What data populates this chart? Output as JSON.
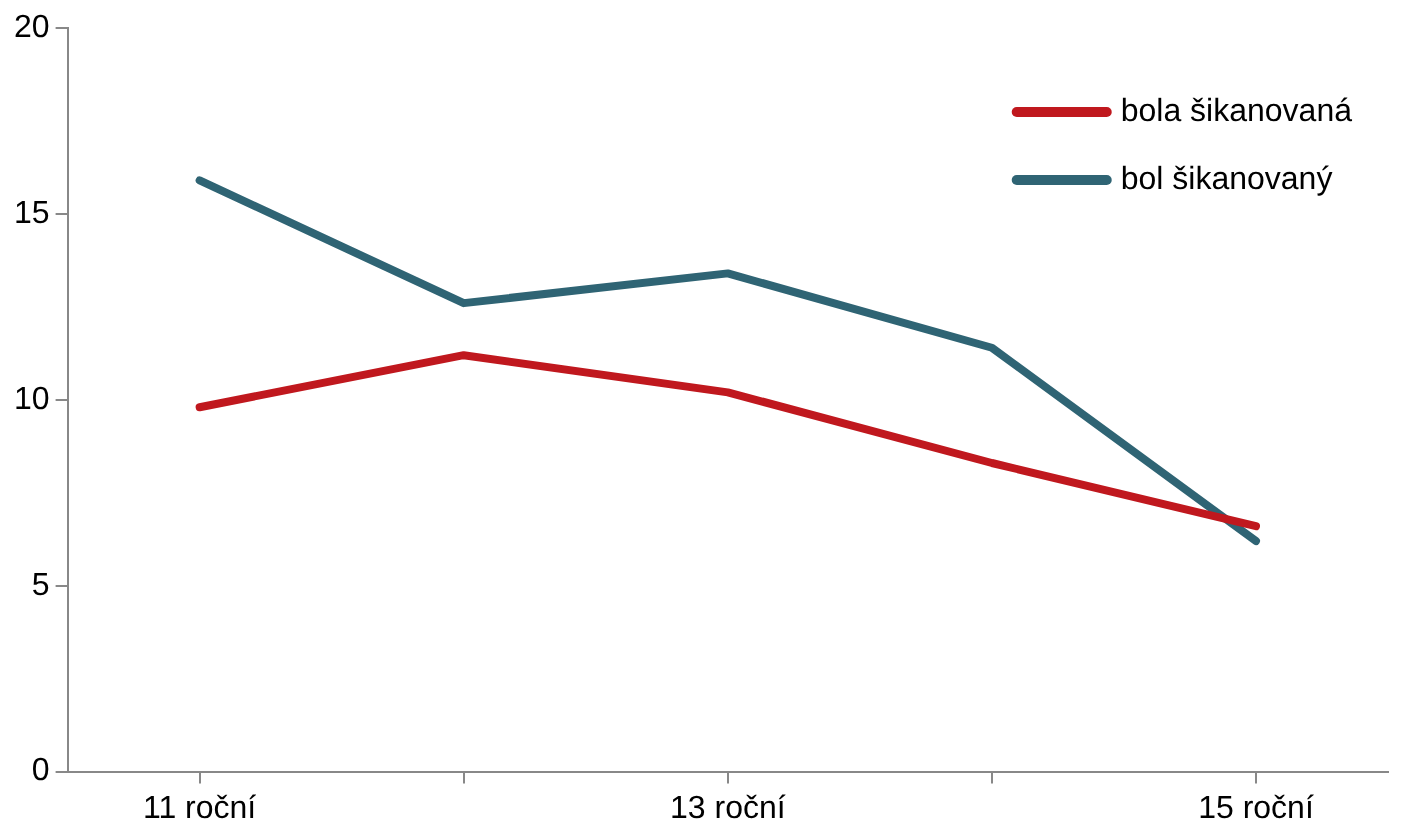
{
  "chart_data": {
    "type": "line",
    "categories": [
      "11 roční",
      null,
      "13 roční",
      null,
      "15 roční"
    ],
    "series": [
      {
        "name": "bola šikanovaná",
        "color": "#c0181e",
        "values": [
          9.8,
          11.2,
          10.2,
          8.3,
          6.6
        ]
      },
      {
        "name": "bol šikanovaný",
        "color": "#2f6474",
        "values": [
          15.9,
          12.6,
          13.4,
          11.4,
          6.2
        ]
      }
    ],
    "ylim": [
      0,
      20
    ],
    "yticks": [
      0,
      5,
      10,
      15,
      20
    ],
    "grid": false,
    "legend": "top right",
    "marker": "none",
    "line_style": "solid"
  }
}
